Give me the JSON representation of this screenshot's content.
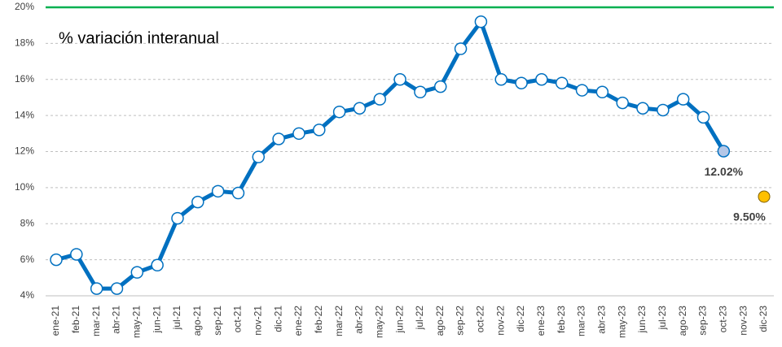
{
  "chart_data": {
    "type": "line",
    "annotation": "% variación interanual",
    "categories": [
      "ene-21",
      "feb-21",
      "mar-21",
      "abr-21",
      "may-21",
      "jun-21",
      "jul-21",
      "ago-21",
      "sep-21",
      "oct-21",
      "nov-21",
      "dic-21",
      "ene-22",
      "feb-22",
      "mar-22",
      "abr-22",
      "may-22",
      "jun-22",
      "jul-22",
      "ago-22",
      "sep-22",
      "oct-22",
      "nov-22",
      "dic-22",
      "ene-23",
      "feb-23",
      "mar-23",
      "abr-23",
      "may-23",
      "jun-23",
      "jul-23",
      "ago-23",
      "sep-23",
      "oct-23",
      "nov-23",
      "dic-23"
    ],
    "series": [
      {
        "color": "#0070c0",
        "marker_fill": "#ffffff",
        "last_marker_fill": "#b4c7e7",
        "values": [
          6.0,
          6.3,
          4.4,
          4.4,
          5.3,
          5.7,
          8.3,
          9.2,
          9.8,
          9.7,
          11.7,
          12.7,
          13.0,
          13.2,
          14.2,
          14.4,
          14.9,
          16.0,
          15.3,
          15.6,
          17.7,
          19.2,
          16.0,
          15.8,
          16.0,
          15.8,
          15.4,
          15.3,
          14.7,
          14.4,
          14.3,
          14.9,
          13.9,
          12.02,
          null,
          null
        ],
        "value_labels": [
          null,
          null,
          null,
          null,
          null,
          null,
          null,
          null,
          null,
          null,
          null,
          null,
          null,
          null,
          null,
          null,
          null,
          null,
          null,
          null,
          null,
          null,
          null,
          null,
          null,
          null,
          null,
          null,
          null,
          null,
          null,
          null,
          null,
          "12.02%",
          null,
          null
        ]
      },
      {
        "color": "#ffc000",
        "values": [
          null,
          null,
          null,
          null,
          null,
          null,
          null,
          null,
          null,
          null,
          null,
          null,
          null,
          null,
          null,
          null,
          null,
          null,
          null,
          null,
          null,
          null,
          null,
          null,
          null,
          null,
          null,
          null,
          null,
          null,
          null,
          null,
          null,
          null,
          null,
          9.5
        ],
        "value_labels": [
          null,
          null,
          null,
          null,
          null,
          null,
          null,
          null,
          null,
          null,
          null,
          null,
          null,
          null,
          null,
          null,
          null,
          null,
          null,
          null,
          null,
          null,
          null,
          null,
          null,
          null,
          null,
          null,
          null,
          null,
          null,
          null,
          null,
          null,
          null,
          "9.50%"
        ]
      }
    ],
    "ylim": [
      4,
      20
    ],
    "yticks": [
      {
        "value": 4,
        "label": "4%"
      },
      {
        "value": 6,
        "label": "6%"
      },
      {
        "value": 8,
        "label": "8%"
      },
      {
        "value": 10,
        "label": "10%"
      },
      {
        "value": 12,
        "label": "12%"
      },
      {
        "value": 14,
        "label": "14%"
      },
      {
        "value": 16,
        "label": "16%"
      },
      {
        "value": 18,
        "label": "18%"
      },
      {
        "value": 20,
        "label": "20%"
      }
    ],
    "grid": true,
    "reference_line": {
      "value": 20,
      "color": "#00b050"
    }
  }
}
